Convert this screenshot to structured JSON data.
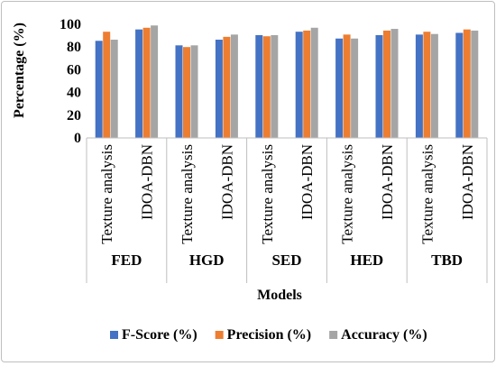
{
  "chart_data": {
    "type": "bar",
    "ylabel": "Percentage (%)",
    "xlabel": "Models",
    "ylim": [
      0,
      100
    ],
    "yticks": [
      0,
      20,
      40,
      60,
      80,
      100
    ],
    "grid": false,
    "legend_position": "bottom",
    "groups": [
      {
        "name": "FED",
        "categories": [
          "Texture analysis",
          "IDOA-DBN"
        ]
      },
      {
        "name": "HGD",
        "categories": [
          "Texture analysis",
          "IDOA-DBN"
        ]
      },
      {
        "name": "SED",
        "categories": [
          "Texture analysis",
          "IDOA-DBN"
        ]
      },
      {
        "name": "HED",
        "categories": [
          "Texture analysis",
          "IDOA-DBN"
        ]
      },
      {
        "name": "TBD",
        "categories": [
          "Texture analysis",
          "IDOA-DBN"
        ]
      }
    ],
    "categories": [
      "Texture analysis",
      "IDOA-DBN",
      "Texture analysis",
      "IDOA-DBN",
      "Texture analysis",
      "IDOA-DBN",
      "Texture analysis",
      "IDOA-DBN",
      "Texture analysis",
      "IDOA-DBN"
    ],
    "series": [
      {
        "name": "F-Score (%)",
        "color": "#4472c4",
        "values": [
          85.5,
          95.5,
          81.5,
          86.5,
          90.5,
          93.5,
          87.5,
          90.5,
          91.0,
          92.5
        ]
      },
      {
        "name": "Precision (%)",
        "color": "#ed7d31",
        "values": [
          93.5,
          97.0,
          80.0,
          89.0,
          89.5,
          94.5,
          91.0,
          94.5,
          93.5,
          95.5
        ]
      },
      {
        "name": "Accuracy (%)",
        "color": "#a5a5a5",
        "values": [
          86.5,
          99.0,
          81.5,
          91.0,
          90.5,
          97.0,
          87.5,
          96.0,
          91.5,
          94.5
        ]
      }
    ]
  }
}
